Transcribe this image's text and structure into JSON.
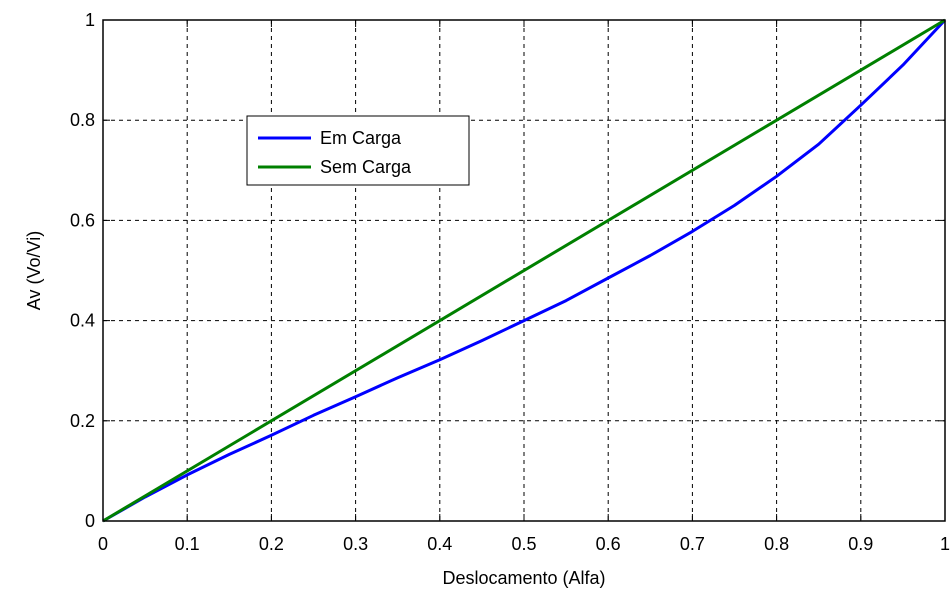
{
  "chart_data": {
    "type": "line",
    "xlabel": "Deslocamento (Alfa)",
    "ylabel": "Av (Vo/Vi)",
    "xlim": [
      0,
      1
    ],
    "ylim": [
      0,
      1
    ],
    "xticks": [
      "0",
      "0.1",
      "0.2",
      "0.3",
      "0.4",
      "0.5",
      "0.6",
      "0.7",
      "0.8",
      "0.9",
      "1"
    ],
    "yticks": [
      "0",
      "0.2",
      "0.4",
      "0.6",
      "0.8",
      "1"
    ],
    "grid": true,
    "legend_position": "upper-left",
    "series": [
      {
        "name": "Em Carga",
        "color": "#0000ff",
        "x": [
          0,
          0.05,
          0.1,
          0.15,
          0.2,
          0.25,
          0.3,
          0.35,
          0.4,
          0.45,
          0.5,
          0.55,
          0.6,
          0.65,
          0.7,
          0.75,
          0.8,
          0.85,
          0.9,
          0.95,
          1.0
        ],
        "y": [
          0,
          0.048,
          0.092,
          0.133,
          0.171,
          0.211,
          0.248,
          0.286,
          0.322,
          0.36,
          0.4,
          0.44,
          0.485,
          0.53,
          0.578,
          0.63,
          0.688,
          0.752,
          0.83,
          0.91,
          1.0
        ]
      },
      {
        "name": "Sem Carga",
        "color": "#008000",
        "x": [
          0,
          1
        ],
        "y": [
          0,
          1
        ]
      }
    ]
  }
}
